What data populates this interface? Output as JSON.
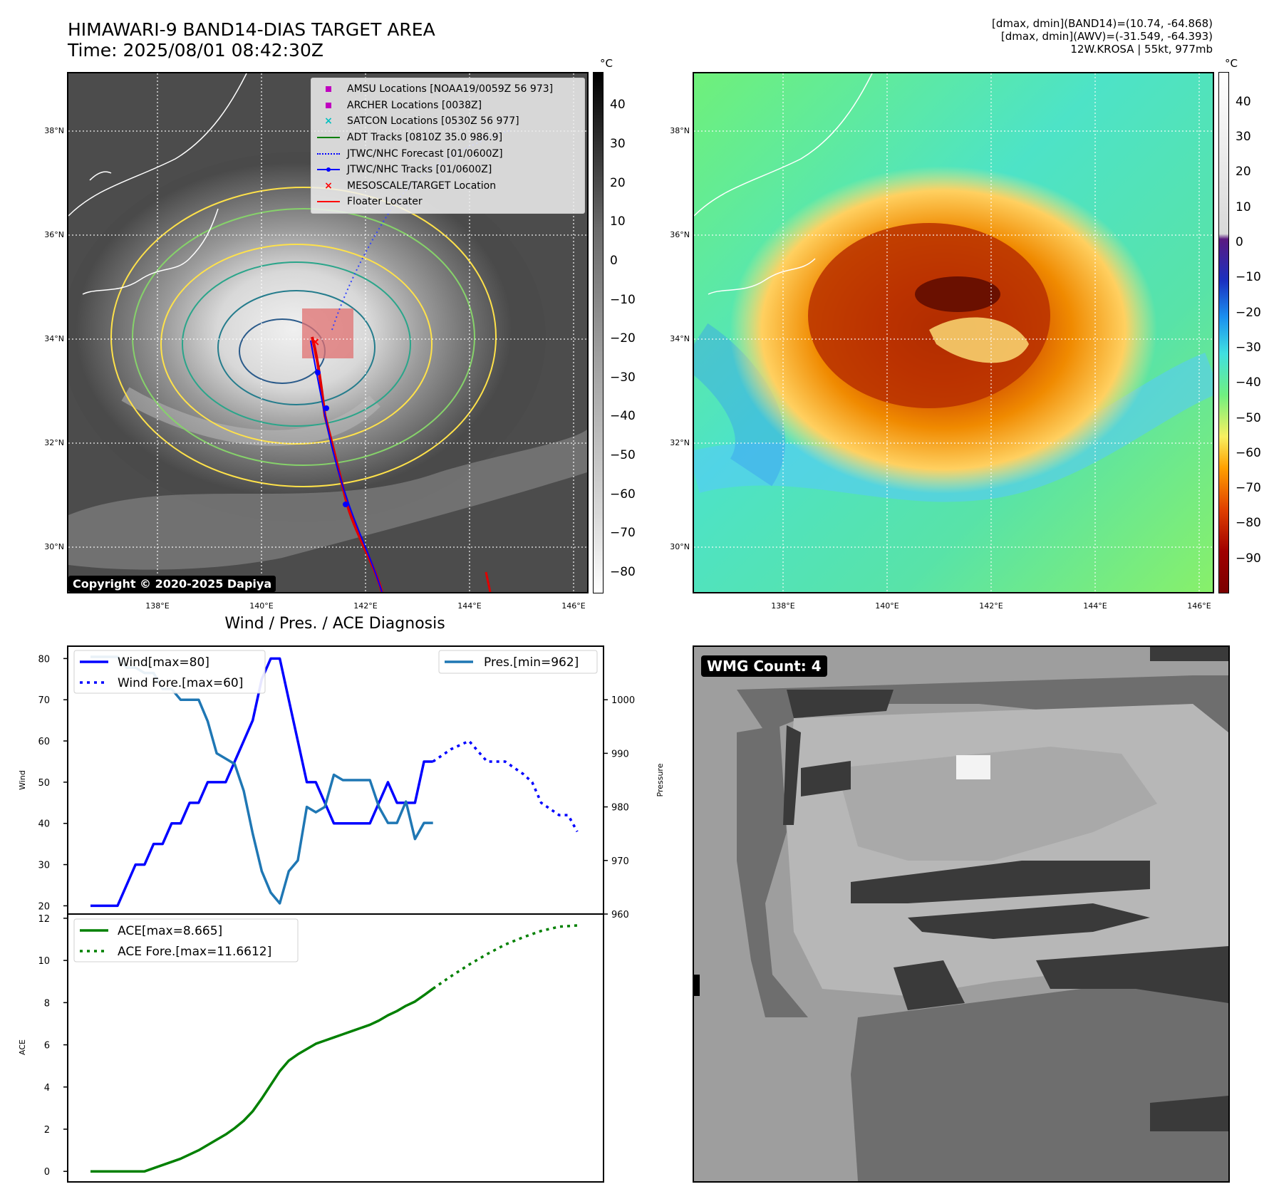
{
  "header": {
    "title_line1": "HIMAWARI-9 BAND14-DIAS TARGET AREA",
    "title_line2": "Time: 2025/08/01 08:42:30Z",
    "info_line1": "[dmax, dmin](BAND14)=(10.74, -64.868)",
    "info_line2": "[dmax, dmin](AWV)=(-31.549, -64.393)",
    "info_line3": "12W.KROSA | 55kt, 977mb"
  },
  "map_axes": {
    "lat_labels": [
      "38°N",
      "36°N",
      "34°N",
      "32°N",
      "30°N"
    ],
    "lon_labels": [
      "138°E",
      "140°E",
      "142°E",
      "144°E",
      "146°E"
    ]
  },
  "legend": {
    "items": [
      {
        "label": "AMSU Locations [NOAA19/0059Z 56 973]",
        "color": "#c000c0",
        "marker": "square"
      },
      {
        "label": "ARCHER Locations [0038Z]",
        "color": "#c000c0",
        "marker": "square"
      },
      {
        "label": "SATCON Locations [0530Z 56 977]",
        "color": "#00c0c0",
        "marker": "x"
      },
      {
        "label": "ADT Tracks [0810Z 35.0 986.9]",
        "color": "#008000",
        "marker": "line"
      },
      {
        "label": "JTWC/NHC Forecast [01/0600Z]",
        "color": "#0000ff",
        "marker": "dotted"
      },
      {
        "label": "JTWC/NHC Tracks [01/0600Z]",
        "color": "#0000ff",
        "marker": "line-dot"
      },
      {
        "label": "MESOSCALE/TARGET Location",
        "color": "#ff0000",
        "marker": "x"
      },
      {
        "label": "Floater Locater",
        "color": "#ff0000",
        "marker": "line"
      }
    ]
  },
  "copyright": "Copyright © 2020-2025 Dapiya",
  "colorbar_gray": {
    "unit": "°C",
    "ticks": [
      "40",
      "30",
      "20",
      "10",
      "0",
      "−10",
      "−20",
      "−30",
      "−40",
      "−50",
      "−60",
      "−70",
      "−80"
    ]
  },
  "colorbar_color": {
    "unit": "°C",
    "ticks": [
      "40",
      "30",
      "20",
      "10",
      "0",
      "−10",
      "−20",
      "−30",
      "−40",
      "−50",
      "−60",
      "−70",
      "−80",
      "−90"
    ]
  },
  "diagnosis_title": "Wind / Pres. / ACE Diagnosis",
  "wmg_label": "WMG Count: 4",
  "colors": {
    "wind": "#0000ff",
    "pressure": "#1f77b4",
    "ace": "#008000"
  },
  "chart_data": [
    {
      "type": "line",
      "title": "Wind / Pres. / ACE Diagnosis",
      "ylabel": "Wind",
      "ylabel_right": "Pressure",
      "ylim": [
        18,
        83
      ],
      "ylim_right": [
        960,
        1010
      ],
      "yticks": [
        "80",
        "70",
        "60",
        "50",
        "40",
        "30",
        "20"
      ],
      "yticks_right": [
        "1000",
        "990",
        "980",
        "970",
        "960"
      ],
      "legend": [
        "Wind[max=80]",
        "Wind Fore.[max=60]",
        "Pres.[min=962]"
      ],
      "series": [
        {
          "name": "Wind[max=80]",
          "axis": "left",
          "style": "solid",
          "x": [
            0,
            1.5,
            2.5,
            3,
            3.5,
            4,
            4.5,
            5,
            5.5,
            6,
            6.5,
            7,
            7.5,
            8,
            8.5,
            9,
            9.5,
            10,
            10.5,
            11,
            11.5,
            12,
            12.5,
            13,
            13.5,
            14,
            14.5,
            15,
            15.5,
            16,
            16.5,
            17,
            17.5,
            18,
            18.5,
            19
          ],
          "values": [
            20,
            20,
            30,
            30,
            35,
            35,
            40,
            40,
            45,
            45,
            50,
            50,
            50,
            55,
            60,
            65,
            75,
            80,
            80,
            70,
            60,
            50,
            50,
            45,
            40,
            40,
            40,
            40,
            40,
            45,
            50,
            45,
            45,
            45,
            55,
            55
          ]
        },
        {
          "name": "Wind Fore.[max=60]",
          "axis": "left",
          "style": "dotted",
          "x": [
            19,
            20,
            21,
            22,
            23,
            24,
            24.5,
            25,
            26,
            26.5,
            27
          ],
          "values": [
            55,
            58,
            60,
            55,
            55,
            52,
            50,
            45,
            42,
            42,
            38
          ]
        },
        {
          "name": "Pres.[min=962]",
          "axis": "right",
          "style": "solid",
          "x": [
            0,
            1.5,
            2,
            2.5,
            3,
            3.5,
            4,
            4.5,
            5,
            5.5,
            6,
            6.5,
            7,
            7.5,
            8,
            8.5,
            9,
            9.5,
            10,
            10.5,
            11,
            11.5,
            12,
            12.5,
            13,
            13.5,
            14,
            14.5,
            15,
            15.5,
            16,
            16.5,
            17,
            17.5,
            18,
            18.5,
            19
          ],
          "values": [
            1008,
            1008,
            1006,
            1006,
            1005,
            1005,
            1002,
            1002,
            1000,
            1000,
            1000,
            996,
            990,
            989,
            988,
            983,
            975,
            968,
            964,
            962,
            968,
            970,
            980,
            979,
            980,
            986,
            985,
            985,
            985,
            985,
            980,
            977,
            977,
            981,
            974,
            977,
            977
          ]
        }
      ]
    },
    {
      "type": "line",
      "ylabel": "ACE",
      "ylim": [
        -0.5,
        12.2
      ],
      "yticks": [
        "12",
        "10",
        "8",
        "6",
        "4",
        "2",
        "0"
      ],
      "legend": [
        "ACE[max=8.665]",
        "ACE Fore.[max=11.6612]"
      ],
      "series": [
        {
          "name": "ACE[max=8.665]",
          "style": "solid",
          "x": [
            0,
            1,
            2,
            3,
            4,
            5,
            6,
            7,
            7.5,
            8,
            8.5,
            9,
            9.5,
            10,
            10.5,
            11,
            11.5,
            12,
            12.5,
            13,
            13.5,
            14,
            14.5,
            15,
            15.5,
            16,
            16.5,
            17,
            17.5,
            18,
            18.5,
            19
          ],
          "values": [
            0,
            0,
            0,
            0,
            0.3,
            0.6,
            1.0,
            1.5,
            1.75,
            2.05,
            2.4,
            2.85,
            3.45,
            4.1,
            4.75,
            5.25,
            5.55,
            5.8,
            6.05,
            6.2,
            6.35,
            6.5,
            6.65,
            6.8,
            6.95,
            7.15,
            7.4,
            7.6,
            7.85,
            8.05,
            8.35,
            8.665
          ]
        },
        {
          "name": "ACE Fore.[max=11.6612]",
          "style": "dotted",
          "x": [
            19,
            20,
            21,
            22,
            23,
            24,
            25,
            26,
            27
          ],
          "values": [
            8.665,
            9.25,
            9.8,
            10.3,
            10.75,
            11.1,
            11.4,
            11.6,
            11.66
          ]
        }
      ]
    }
  ]
}
